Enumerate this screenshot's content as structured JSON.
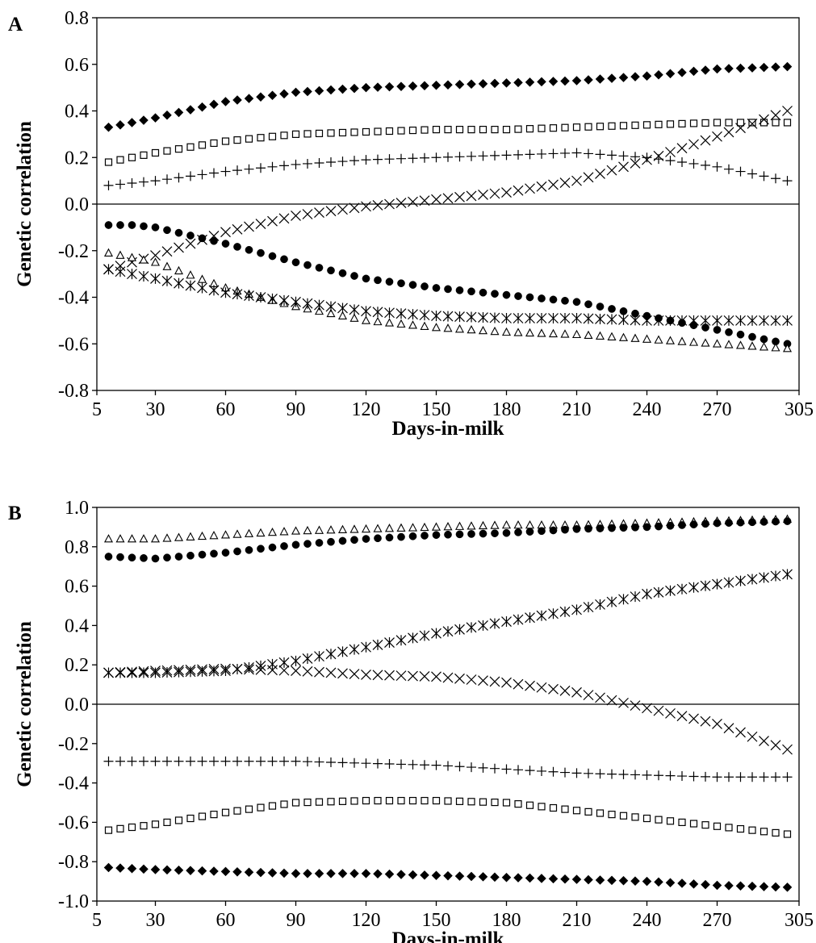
{
  "chart_data": [
    {
      "panel": "A",
      "type": "scatter",
      "xlabel": "Days-in-milk",
      "ylabel": "Genetic correlation",
      "xlim": [
        5,
        305
      ],
      "ylim": [
        -0.8,
        0.8
      ],
      "xticks": [
        "5",
        "30",
        "60",
        "90",
        "120",
        "150",
        "180",
        "210",
        "240",
        "270",
        "305"
      ],
      "yticks": [
        "0.8",
        "0.6",
        "0.4",
        "0.2",
        "0.0",
        "-0.2",
        "-0.4",
        "-0.6",
        "-0.8"
      ],
      "grid": false,
      "legend": "none",
      "x_range_points": [
        10,
        300
      ],
      "series": [
        {
          "marker": "diamond",
          "points": [
            [
              10,
              0.33
            ],
            [
              30,
              0.37
            ],
            [
              60,
              0.44
            ],
            [
              90,
              0.48
            ],
            [
              120,
              0.5
            ],
            [
              150,
              0.51
            ],
            [
              180,
              0.52
            ],
            [
              210,
              0.53
            ],
            [
              240,
              0.55
            ],
            [
              270,
              0.58
            ],
            [
              300,
              0.59
            ]
          ]
        },
        {
          "marker": "square",
          "points": [
            [
              10,
              0.18
            ],
            [
              30,
              0.22
            ],
            [
              60,
              0.27
            ],
            [
              90,
              0.3
            ],
            [
              120,
              0.31
            ],
            [
              150,
              0.32
            ],
            [
              180,
              0.32
            ],
            [
              210,
              0.33
            ],
            [
              240,
              0.34
            ],
            [
              270,
              0.35
            ],
            [
              300,
              0.35
            ]
          ]
        },
        {
          "marker": "plus",
          "points": [
            [
              10,
              0.08
            ],
            [
              30,
              0.1
            ],
            [
              60,
              0.14
            ],
            [
              90,
              0.17
            ],
            [
              120,
              0.19
            ],
            [
              150,
              0.2
            ],
            [
              180,
              0.21
            ],
            [
              210,
              0.22
            ],
            [
              240,
              0.2
            ],
            [
              270,
              0.16
            ],
            [
              300,
              0.1
            ]
          ]
        },
        {
          "marker": "x",
          "points": [
            [
              10,
              -0.28
            ],
            [
              30,
              -0.22
            ],
            [
              60,
              -0.12
            ],
            [
              90,
              -0.05
            ],
            [
              120,
              -0.01
            ],
            [
              150,
              0.02
            ],
            [
              180,
              0.05
            ],
            [
              210,
              0.1
            ],
            [
              240,
              0.19
            ],
            [
              270,
              0.29
            ],
            [
              300,
              0.4
            ]
          ]
        },
        {
          "marker": "circle",
          "points": [
            [
              10,
              -0.09
            ],
            [
              20,
              -0.09
            ],
            [
              30,
              -0.1
            ],
            [
              60,
              -0.17
            ],
            [
              90,
              -0.25
            ],
            [
              120,
              -0.32
            ],
            [
              150,
              -0.36
            ],
            [
              180,
              -0.39
            ],
            [
              210,
              -0.42
            ],
            [
              240,
              -0.48
            ],
            [
              270,
              -0.54
            ],
            [
              300,
              -0.6
            ]
          ]
        },
        {
          "marker": "triangle",
          "points": [
            [
              10,
              -0.21
            ],
            [
              30,
              -0.25
            ],
            [
              60,
              -0.36
            ],
            [
              90,
              -0.44
            ],
            [
              120,
              -0.5
            ],
            [
              150,
              -0.53
            ],
            [
              180,
              -0.55
            ],
            [
              210,
              -0.56
            ],
            [
              240,
              -0.58
            ],
            [
              270,
              -0.6
            ],
            [
              300,
              -0.62
            ]
          ]
        },
        {
          "marker": "asterisk",
          "points": [
            [
              10,
              -0.28
            ],
            [
              30,
              -0.32
            ],
            [
              60,
              -0.38
            ],
            [
              90,
              -0.42
            ],
            [
              120,
              -0.46
            ],
            [
              150,
              -0.48
            ],
            [
              180,
              -0.49
            ],
            [
              210,
              -0.49
            ],
            [
              240,
              -0.5
            ],
            [
              270,
              -0.5
            ],
            [
              300,
              -0.5
            ]
          ]
        }
      ]
    },
    {
      "panel": "B",
      "type": "scatter",
      "xlabel": "Days-in-milk",
      "ylabel": "Genetic correlation",
      "xlim": [
        5,
        305
      ],
      "ylim": [
        -1.0,
        1.0
      ],
      "xticks": [
        "5",
        "30",
        "60",
        "90",
        "120",
        "150",
        "180",
        "210",
        "240",
        "270",
        "305"
      ],
      "yticks": [
        "1.0",
        "0.8",
        "0.6",
        "0.4",
        "0.2",
        "0.0",
        "-0.2",
        "-0.4",
        "-0.6",
        "-0.8",
        "-1.0"
      ],
      "grid": false,
      "legend": "none",
      "x_range_points": [
        10,
        300
      ],
      "series": [
        {
          "marker": "triangle",
          "points": [
            [
              10,
              0.84
            ],
            [
              30,
              0.84
            ],
            [
              60,
              0.86
            ],
            [
              90,
              0.88
            ],
            [
              120,
              0.89
            ],
            [
              150,
              0.9
            ],
            [
              180,
              0.91
            ],
            [
              210,
              0.91
            ],
            [
              240,
              0.92
            ],
            [
              270,
              0.93
            ],
            [
              300,
              0.94
            ]
          ]
        },
        {
          "marker": "circle",
          "points": [
            [
              10,
              0.75
            ],
            [
              30,
              0.74
            ],
            [
              60,
              0.77
            ],
            [
              90,
              0.81
            ],
            [
              120,
              0.84
            ],
            [
              150,
              0.86
            ],
            [
              180,
              0.87
            ],
            [
              210,
              0.89
            ],
            [
              240,
              0.9
            ],
            [
              270,
              0.92
            ],
            [
              300,
              0.93
            ]
          ]
        },
        {
          "marker": "asterisk",
          "points": [
            [
              10,
              0.16
            ],
            [
              30,
              0.16
            ],
            [
              60,
              0.17
            ],
            [
              90,
              0.22
            ],
            [
              120,
              0.29
            ],
            [
              150,
              0.36
            ],
            [
              180,
              0.42
            ],
            [
              210,
              0.48
            ],
            [
              240,
              0.56
            ],
            [
              270,
              0.61
            ],
            [
              300,
              0.66
            ]
          ]
        },
        {
          "marker": "x",
          "points": [
            [
              10,
              0.16
            ],
            [
              30,
              0.17
            ],
            [
              60,
              0.18
            ],
            [
              90,
              0.17
            ],
            [
              120,
              0.15
            ],
            [
              150,
              0.14
            ],
            [
              180,
              0.11
            ],
            [
              210,
              0.06
            ],
            [
              240,
              -0.02
            ],
            [
              270,
              -0.1
            ],
            [
              300,
              -0.23
            ]
          ]
        },
        {
          "marker": "plus",
          "points": [
            [
              10,
              -0.29
            ],
            [
              30,
              -0.29
            ],
            [
              60,
              -0.29
            ],
            [
              90,
              -0.29
            ],
            [
              120,
              -0.3
            ],
            [
              150,
              -0.31
            ],
            [
              180,
              -0.33
            ],
            [
              210,
              -0.35
            ],
            [
              240,
              -0.36
            ],
            [
              270,
              -0.37
            ],
            [
              300,
              -0.37
            ]
          ]
        },
        {
          "marker": "square",
          "points": [
            [
              10,
              -0.64
            ],
            [
              30,
              -0.61
            ],
            [
              60,
              -0.55
            ],
            [
              90,
              -0.5
            ],
            [
              120,
              -0.49
            ],
            [
              150,
              -0.49
            ],
            [
              180,
              -0.5
            ],
            [
              210,
              -0.54
            ],
            [
              240,
              -0.58
            ],
            [
              270,
              -0.62
            ],
            [
              300,
              -0.66
            ]
          ]
        },
        {
          "marker": "diamond",
          "points": [
            [
              10,
              -0.83
            ],
            [
              30,
              -0.84
            ],
            [
              60,
              -0.85
            ],
            [
              90,
              -0.86
            ],
            [
              120,
              -0.86
            ],
            [
              150,
              -0.87
            ],
            [
              180,
              -0.88
            ],
            [
              210,
              -0.89
            ],
            [
              240,
              -0.9
            ],
            [
              270,
              -0.92
            ],
            [
              300,
              -0.93
            ]
          ]
        }
      ]
    }
  ]
}
